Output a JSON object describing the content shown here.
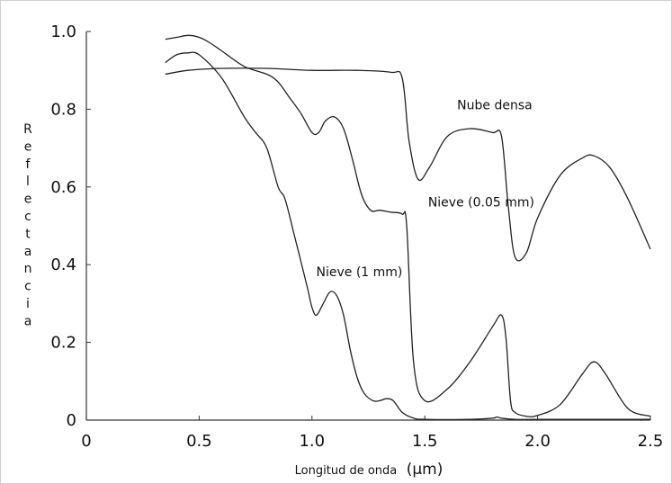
{
  "chart_data": {
    "type": "line",
    "title": "",
    "xlabel": "Longitud de onda",
    "xlabel_unit": "(µm)",
    "ylabel": "Reflectancia",
    "xlim": [
      0,
      2.5
    ],
    "ylim": [
      0,
      1.0
    ],
    "x_ticks": [
      "0",
      "0.5",
      "1.0",
      "1.5",
      "2.0",
      "2.5"
    ],
    "y_ticks": [
      "0",
      "0.2",
      "0.4",
      "0.6",
      "0.8",
      "1.0"
    ],
    "grid": false,
    "legend": "none",
    "series": [
      {
        "name": "Nube densa",
        "label_at": [
          1.81,
          0.8
        ],
        "x": [
          0.35,
          0.45,
          0.6,
          0.8,
          1.0,
          1.2,
          1.35,
          1.4,
          1.43,
          1.47,
          1.52,
          1.6,
          1.7,
          1.8,
          1.84,
          1.87,
          1.9,
          1.95,
          2.0,
          2.1,
          2.2,
          2.25,
          2.32,
          2.4,
          2.5
        ],
        "y": [
          0.89,
          0.9,
          0.905,
          0.905,
          0.9,
          0.9,
          0.895,
          0.88,
          0.72,
          0.62,
          0.65,
          0.73,
          0.75,
          0.74,
          0.73,
          0.55,
          0.42,
          0.43,
          0.52,
          0.63,
          0.675,
          0.68,
          0.65,
          0.57,
          0.44
        ]
      },
      {
        "name": "Nieve (0.05 mm)",
        "label_at": [
          1.75,
          0.55
        ],
        "x": [
          0.35,
          0.4,
          0.45,
          0.5,
          0.55,
          0.6,
          0.7,
          0.8,
          0.85,
          0.9,
          0.95,
          1.0,
          1.03,
          1.06,
          1.1,
          1.14,
          1.18,
          1.22,
          1.26,
          1.3,
          1.35,
          1.4,
          1.42,
          1.45,
          1.5,
          1.6,
          1.7,
          1.8,
          1.84,
          1.86,
          1.88,
          1.9,
          1.95,
          2.0,
          2.1,
          2.2,
          2.25,
          2.3,
          2.4,
          2.5
        ],
        "y": [
          0.98,
          0.985,
          0.99,
          0.985,
          0.97,
          0.95,
          0.91,
          0.89,
          0.87,
          0.83,
          0.79,
          0.74,
          0.74,
          0.77,
          0.78,
          0.75,
          0.67,
          0.58,
          0.54,
          0.54,
          0.535,
          0.53,
          0.5,
          0.15,
          0.05,
          0.08,
          0.15,
          0.24,
          0.27,
          0.21,
          0.05,
          0.02,
          0.01,
          0.012,
          0.04,
          0.12,
          0.15,
          0.12,
          0.03,
          0.01
        ]
      },
      {
        "name": "Nieve (1 mm)",
        "label_at": [
          1.21,
          0.37
        ],
        "x": [
          0.35,
          0.4,
          0.45,
          0.5,
          0.6,
          0.7,
          0.75,
          0.8,
          0.85,
          0.88,
          0.92,
          0.95,
          0.98,
          1.0,
          1.02,
          1.05,
          1.08,
          1.11,
          1.14,
          1.17,
          1.2,
          1.23,
          1.27,
          1.3,
          1.33,
          1.36,
          1.4,
          1.45,
          1.5,
          1.7,
          1.8,
          1.82,
          1.84,
          1.9,
          2.0,
          2.5
        ],
        "y": [
          0.92,
          0.94,
          0.945,
          0.94,
          0.88,
          0.78,
          0.74,
          0.7,
          0.6,
          0.57,
          0.48,
          0.41,
          0.34,
          0.29,
          0.27,
          0.3,
          0.33,
          0.32,
          0.27,
          0.18,
          0.11,
          0.07,
          0.05,
          0.05,
          0.055,
          0.05,
          0.02,
          0.005,
          0.002,
          0.002,
          0.005,
          0.008,
          0.005,
          0.002,
          0.002,
          0.002
        ]
      }
    ]
  }
}
